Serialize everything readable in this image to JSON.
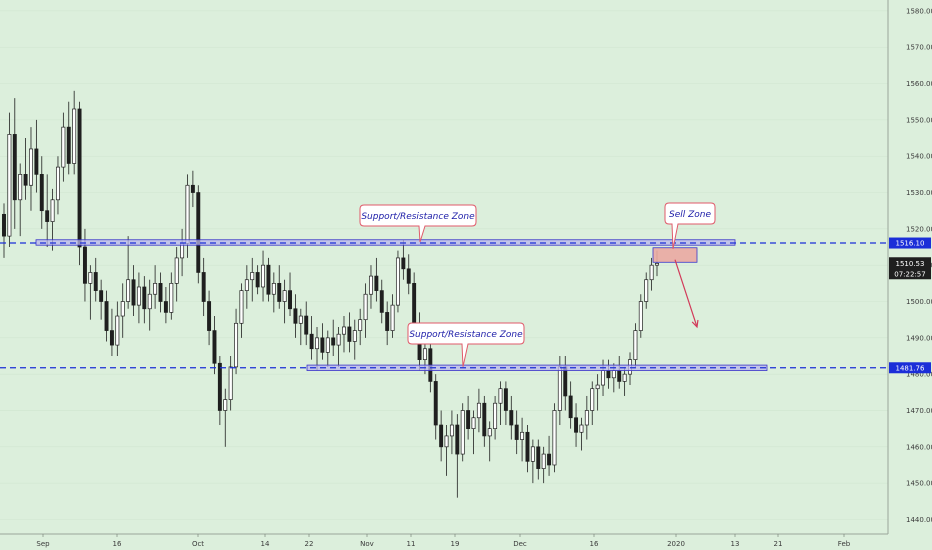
{
  "chart_data": {
    "type": "candlestick",
    "title": "",
    "y_axis": {
      "min": 1436,
      "max": 1583,
      "ticks": [
        "1440.00",
        "1450.00",
        "1460.00",
        "1470.00",
        "1480.00",
        "1490.00",
        "1500.00",
        "1510.00",
        "1520.00",
        "1530.00",
        "1540.00",
        "1550.00",
        "1560.00",
        "1570.00",
        "1580.00"
      ]
    },
    "x_axis": {
      "labels": [
        "Sep",
        "16",
        "Oct",
        "14",
        "22",
        "Nov",
        "11",
        "19",
        "Dec",
        "16",
        "2020",
        "13",
        "21",
        "Feb"
      ]
    },
    "price_levels": [
      {
        "name": "upper_level",
        "value": 1516.1,
        "label": "1516.10",
        "color": "#1b2ed8"
      },
      {
        "name": "lower_level",
        "value": 1481.76,
        "label": "1481.76",
        "color": "#1b2ed8"
      }
    ],
    "last_price": {
      "label": "1510.53",
      "countdown": "07:22:57"
    },
    "annotations": [
      {
        "text": "Support/Resistance Zone",
        "anchor_value": 1516.1
      },
      {
        "text": "Support/Resistance Zone",
        "anchor_value": 1481.76
      },
      {
        "text": "Sell Zone",
        "anchor_value": 1514.5
      }
    ],
    "zones": [
      {
        "name": "upper_zone",
        "low": 1515.5,
        "high": 1517.0
      },
      {
        "name": "lower_zone",
        "low": 1481.0,
        "high": 1482.5
      },
      {
        "name": "sell_zone",
        "low": 1510.8,
        "high": 1514.8
      }
    ],
    "projection": {
      "from": 1511.5,
      "to": 1493.0
    },
    "candles": [
      {
        "o": 1524,
        "h": 1527,
        "l": 1512,
        "c": 1518
      },
      {
        "o": 1518,
        "h": 1552,
        "l": 1515,
        "c": 1546
      },
      {
        "o": 1546,
        "h": 1556,
        "l": 1520,
        "c": 1528
      },
      {
        "o": 1528,
        "h": 1538,
        "l": 1518,
        "c": 1535
      },
      {
        "o": 1535,
        "h": 1545,
        "l": 1528,
        "c": 1532
      },
      {
        "o": 1532,
        "h": 1548,
        "l": 1525,
        "c": 1542
      },
      {
        "o": 1542,
        "h": 1550,
        "l": 1530,
        "c": 1535
      },
      {
        "o": 1535,
        "h": 1540,
        "l": 1520,
        "c": 1525
      },
      {
        "o": 1525,
        "h": 1535,
        "l": 1515,
        "c": 1522
      },
      {
        "o": 1522,
        "h": 1531,
        "l": 1514,
        "c": 1528
      },
      {
        "o": 1528,
        "h": 1540,
        "l": 1524,
        "c": 1537
      },
      {
        "o": 1537,
        "h": 1552,
        "l": 1533,
        "c": 1548
      },
      {
        "o": 1548,
        "h": 1555,
        "l": 1535,
        "c": 1538
      },
      {
        "o": 1538,
        "h": 1558,
        "l": 1535,
        "c": 1553
      },
      {
        "o": 1553,
        "h": 1555,
        "l": 1510,
        "c": 1515
      },
      {
        "o": 1515,
        "h": 1520,
        "l": 1500,
        "c": 1505
      },
      {
        "o": 1505,
        "h": 1510,
        "l": 1495,
        "c": 1508
      },
      {
        "o": 1508,
        "h": 1512,
        "l": 1500,
        "c": 1503
      },
      {
        "o": 1503,
        "h": 1506,
        "l": 1495,
        "c": 1500
      },
      {
        "o": 1500,
        "h": 1503,
        "l": 1489,
        "c": 1492
      },
      {
        "o": 1492,
        "h": 1498,
        "l": 1485,
        "c": 1488
      },
      {
        "o": 1488,
        "h": 1500,
        "l": 1485,
        "c": 1496
      },
      {
        "o": 1496,
        "h": 1505,
        "l": 1490,
        "c": 1500
      },
      {
        "o": 1500,
        "h": 1518,
        "l": 1498,
        "c": 1506
      },
      {
        "o": 1506,
        "h": 1510,
        "l": 1496,
        "c": 1499
      },
      {
        "o": 1499,
        "h": 1508,
        "l": 1494,
        "c": 1504
      },
      {
        "o": 1504,
        "h": 1507,
        "l": 1494,
        "c": 1498
      },
      {
        "o": 1498,
        "h": 1506,
        "l": 1492,
        "c": 1502
      },
      {
        "o": 1502,
        "h": 1510,
        "l": 1498,
        "c": 1505
      },
      {
        "o": 1505,
        "h": 1508,
        "l": 1497,
        "c": 1500
      },
      {
        "o": 1500,
        "h": 1504,
        "l": 1494,
        "c": 1497
      },
      {
        "o": 1497,
        "h": 1508,
        "l": 1495,
        "c": 1505
      },
      {
        "o": 1505,
        "h": 1515,
        "l": 1500,
        "c": 1512
      },
      {
        "o": 1512,
        "h": 1520,
        "l": 1507,
        "c": 1516
      },
      {
        "o": 1516,
        "h": 1535,
        "l": 1512,
        "c": 1532
      },
      {
        "o": 1532,
        "h": 1536,
        "l": 1526,
        "c": 1530
      },
      {
        "o": 1530,
        "h": 1532,
        "l": 1505,
        "c": 1508
      },
      {
        "o": 1508,
        "h": 1512,
        "l": 1496,
        "c": 1500
      },
      {
        "o": 1500,
        "h": 1503,
        "l": 1488,
        "c": 1492
      },
      {
        "o": 1492,
        "h": 1496,
        "l": 1480,
        "c": 1483
      },
      {
        "o": 1483,
        "h": 1485,
        "l": 1466,
        "c": 1470
      },
      {
        "o": 1470,
        "h": 1476,
        "l": 1460,
        "c": 1473
      },
      {
        "o": 1473,
        "h": 1485,
        "l": 1470,
        "c": 1482
      },
      {
        "o": 1482,
        "h": 1498,
        "l": 1480,
        "c": 1494
      },
      {
        "o": 1494,
        "h": 1505,
        "l": 1490,
        "c": 1503
      },
      {
        "o": 1503,
        "h": 1510,
        "l": 1498,
        "c": 1506
      },
      {
        "o": 1506,
        "h": 1512,
        "l": 1500,
        "c": 1508
      },
      {
        "o": 1508,
        "h": 1510,
        "l": 1502,
        "c": 1504
      },
      {
        "o": 1504,
        "h": 1514,
        "l": 1500,
        "c": 1510
      },
      {
        "o": 1510,
        "h": 1512,
        "l": 1500,
        "c": 1502
      },
      {
        "o": 1502,
        "h": 1508,
        "l": 1497,
        "c": 1505
      },
      {
        "o": 1505,
        "h": 1510,
        "l": 1498,
        "c": 1500
      },
      {
        "o": 1500,
        "h": 1506,
        "l": 1494,
        "c": 1503
      },
      {
        "o": 1503,
        "h": 1508,
        "l": 1496,
        "c": 1498
      },
      {
        "o": 1498,
        "h": 1502,
        "l": 1490,
        "c": 1494
      },
      {
        "o": 1494,
        "h": 1498,
        "l": 1488,
        "c": 1496
      },
      {
        "o": 1496,
        "h": 1500,
        "l": 1488,
        "c": 1491
      },
      {
        "o": 1491,
        "h": 1496,
        "l": 1484,
        "c": 1487
      },
      {
        "o": 1487,
        "h": 1493,
        "l": 1481,
        "c": 1490
      },
      {
        "o": 1490,
        "h": 1494,
        "l": 1484,
        "c": 1486
      },
      {
        "o": 1486,
        "h": 1492,
        "l": 1482,
        "c": 1490
      },
      {
        "o": 1490,
        "h": 1495,
        "l": 1485,
        "c": 1488
      },
      {
        "o": 1488,
        "h": 1493,
        "l": 1482,
        "c": 1491
      },
      {
        "o": 1491,
        "h": 1496,
        "l": 1486,
        "c": 1493
      },
      {
        "o": 1493,
        "h": 1497,
        "l": 1486,
        "c": 1489
      },
      {
        "o": 1489,
        "h": 1495,
        "l": 1484,
        "c": 1492
      },
      {
        "o": 1492,
        "h": 1498,
        "l": 1488,
        "c": 1495
      },
      {
        "o": 1495,
        "h": 1505,
        "l": 1490,
        "c": 1502
      },
      {
        "o": 1502,
        "h": 1510,
        "l": 1498,
        "c": 1507
      },
      {
        "o": 1507,
        "h": 1512,
        "l": 1500,
        "c": 1503
      },
      {
        "o": 1503,
        "h": 1506,
        "l": 1494,
        "c": 1497
      },
      {
        "o": 1497,
        "h": 1500,
        "l": 1488,
        "c": 1492
      },
      {
        "o": 1492,
        "h": 1502,
        "l": 1490,
        "c": 1499
      },
      {
        "o": 1499,
        "h": 1514,
        "l": 1497,
        "c": 1512
      },
      {
        "o": 1512,
        "h": 1517,
        "l": 1506,
        "c": 1509
      },
      {
        "o": 1509,
        "h": 1513,
        "l": 1502,
        "c": 1505
      },
      {
        "o": 1505,
        "h": 1508,
        "l": 1490,
        "c": 1494
      },
      {
        "o": 1494,
        "h": 1497,
        "l": 1481,
        "c": 1484
      },
      {
        "o": 1484,
        "h": 1490,
        "l": 1480,
        "c": 1487
      },
      {
        "o": 1487,
        "h": 1489,
        "l": 1475,
        "c": 1478
      },
      {
        "o": 1478,
        "h": 1480,
        "l": 1462,
        "c": 1466
      },
      {
        "o": 1466,
        "h": 1470,
        "l": 1456,
        "c": 1460
      },
      {
        "o": 1460,
        "h": 1466,
        "l": 1452,
        "c": 1463
      },
      {
        "o": 1463,
        "h": 1470,
        "l": 1458,
        "c": 1466
      },
      {
        "o": 1466,
        "h": 1469,
        "l": 1446,
        "c": 1458
      },
      {
        "o": 1458,
        "h": 1472,
        "l": 1456,
        "c": 1470
      },
      {
        "o": 1470,
        "h": 1474,
        "l": 1462,
        "c": 1465
      },
      {
        "o": 1465,
        "h": 1470,
        "l": 1458,
        "c": 1468
      },
      {
        "o": 1468,
        "h": 1476,
        "l": 1464,
        "c": 1472
      },
      {
        "o": 1472,
        "h": 1474,
        "l": 1460,
        "c": 1463
      },
      {
        "o": 1463,
        "h": 1467,
        "l": 1456,
        "c": 1465
      },
      {
        "o": 1465,
        "h": 1474,
        "l": 1462,
        "c": 1472
      },
      {
        "o": 1472,
        "h": 1478,
        "l": 1466,
        "c": 1476
      },
      {
        "o": 1476,
        "h": 1478,
        "l": 1466,
        "c": 1470
      },
      {
        "o": 1470,
        "h": 1474,
        "l": 1462,
        "c": 1466
      },
      {
        "o": 1466,
        "h": 1470,
        "l": 1458,
        "c": 1462
      },
      {
        "o": 1462,
        "h": 1468,
        "l": 1456,
        "c": 1464
      },
      {
        "o": 1464,
        "h": 1466,
        "l": 1453,
        "c": 1456
      },
      {
        "o": 1456,
        "h": 1462,
        "l": 1450,
        "c": 1460
      },
      {
        "o": 1460,
        "h": 1462,
        "l": 1451,
        "c": 1454
      },
      {
        "o": 1454,
        "h": 1460,
        "l": 1450,
        "c": 1458
      },
      {
        "o": 1458,
        "h": 1463,
        "l": 1452,
        "c": 1455
      },
      {
        "o": 1455,
        "h": 1472,
        "l": 1453,
        "c": 1470
      },
      {
        "o": 1470,
        "h": 1485,
        "l": 1466,
        "c": 1482
      },
      {
        "o": 1482,
        "h": 1485,
        "l": 1470,
        "c": 1474
      },
      {
        "o": 1474,
        "h": 1478,
        "l": 1465,
        "c": 1468
      },
      {
        "o": 1468,
        "h": 1472,
        "l": 1460,
        "c": 1464
      },
      {
        "o": 1464,
        "h": 1468,
        "l": 1459,
        "c": 1466
      },
      {
        "o": 1466,
        "h": 1474,
        "l": 1462,
        "c": 1470
      },
      {
        "o": 1470,
        "h": 1478,
        "l": 1466,
        "c": 1476
      },
      {
        "o": 1476,
        "h": 1480,
        "l": 1470,
        "c": 1477
      },
      {
        "o": 1477,
        "h": 1484,
        "l": 1474,
        "c": 1481
      },
      {
        "o": 1481,
        "h": 1484,
        "l": 1476,
        "c": 1479
      },
      {
        "o": 1479,
        "h": 1483,
        "l": 1475,
        "c": 1481
      },
      {
        "o": 1481,
        "h": 1485,
        "l": 1476,
        "c": 1478
      },
      {
        "o": 1478,
        "h": 1482,
        "l": 1474,
        "c": 1480
      },
      {
        "o": 1480,
        "h": 1486,
        "l": 1477,
        "c": 1484
      },
      {
        "o": 1484,
        "h": 1494,
        "l": 1482,
        "c": 1492
      },
      {
        "o": 1492,
        "h": 1502,
        "l": 1490,
        "c": 1500
      },
      {
        "o": 1500,
        "h": 1508,
        "l": 1498,
        "c": 1506
      },
      {
        "o": 1506,
        "h": 1512,
        "l": 1503,
        "c": 1510
      },
      {
        "o": 1510,
        "h": 1514,
        "l": 1507,
        "c": 1510.5
      }
    ]
  },
  "chart_style": {
    "background": "#dcefdc",
    "candle_color": "#1f1f1f",
    "level_color": "#1b2ed8",
    "zone_fill": "#b9b6ec",
    "zone_stroke": "#3b34c9",
    "sell_zone_fill": "#eaa9a2",
    "arrow_color": "#d23a5a",
    "callout_border": "#e05a6a",
    "callout_text": "#1c1ca8",
    "grid_color": "#cfe4cf",
    "dark_tag_bg": "#1f1f1f"
  }
}
